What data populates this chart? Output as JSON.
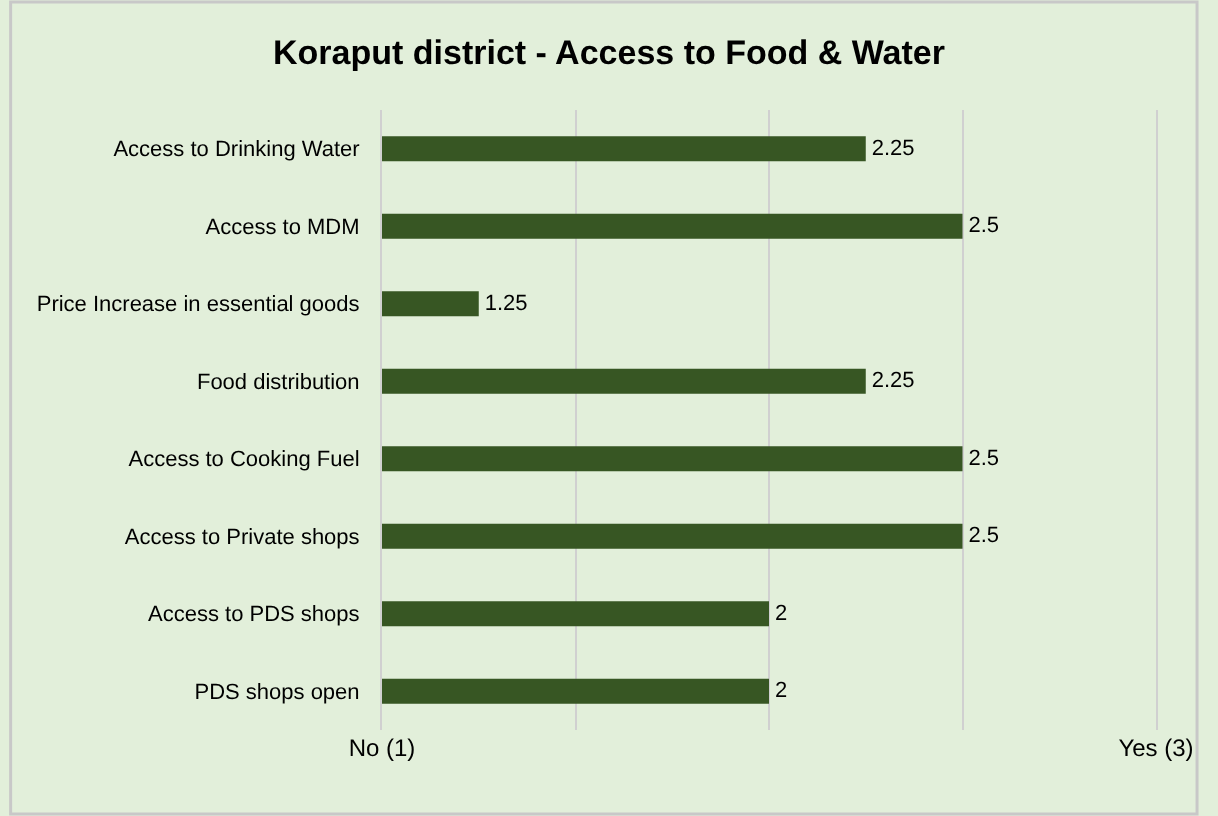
{
  "chart_data": {
    "type": "bar",
    "orientation": "horizontal",
    "title": "Koraput district - Access to Food & Water",
    "categories": [
      "Access to Drinking Water",
      "Access to MDM",
      "Price Increase in essential goods",
      "Food distribution",
      "Access to Cooking Fuel",
      "Access to Private shops",
      "Access to PDS shops",
      "PDS shops open"
    ],
    "values": [
      2.25,
      2.5,
      1.25,
      2.25,
      2.5,
      2.5,
      2,
      2
    ],
    "color": "#375623",
    "xlim": [
      1,
      3
    ],
    "xticks": [
      {
        "value": 1,
        "label": "No (1)"
      },
      {
        "value": 1.5,
        "label": null
      },
      {
        "value": 2,
        "label": null
      },
      {
        "value": 2.5,
        "label": null
      },
      {
        "value": 3,
        "label": "Yes (3)"
      }
    ],
    "grid": "x",
    "data_labels": true
  }
}
